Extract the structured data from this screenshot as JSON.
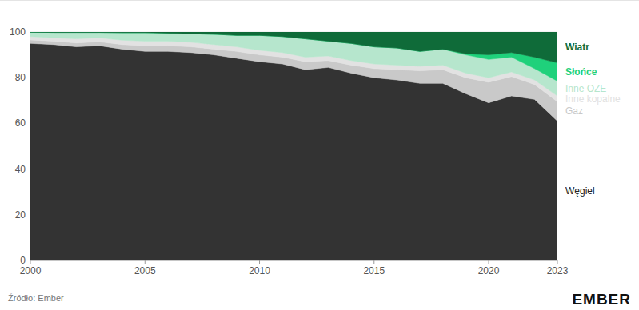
{
  "chart_data": {
    "type": "area",
    "stacked": true,
    "grid": true,
    "x": [
      2000,
      2001,
      2002,
      2003,
      2004,
      2005,
      2006,
      2007,
      2008,
      2009,
      2010,
      2011,
      2012,
      2013,
      2014,
      2015,
      2016,
      2017,
      2018,
      2019,
      2020,
      2021,
      2022,
      2023
    ],
    "xlim": [
      2000,
      2023
    ],
    "xticks": [
      2000,
      2005,
      2010,
      2015,
      2020,
      2023
    ],
    "ylim": [
      0,
      100
    ],
    "yticks": [
      0,
      20,
      40,
      60,
      80,
      100
    ],
    "series": [
      {
        "name": "Węgiel",
        "color": "#333333",
        "values": [
          95,
          94.5,
          93.5,
          94,
          92.5,
          91.5,
          91.5,
          91,
          90,
          88.5,
          87,
          86,
          83.5,
          84.5,
          82,
          80,
          79,
          77.5,
          77.5,
          73,
          69,
          72,
          70.5,
          61
        ]
      },
      {
        "name": "Gaz",
        "color": "#c9c9c9",
        "values": [
          1.5,
          1.5,
          1.7,
          1.7,
          2,
          2.5,
          2.5,
          2.5,
          2.5,
          3,
          3,
          3,
          3.5,
          3,
          3.5,
          4,
          4.5,
          5.5,
          6,
          7,
          9,
          8.5,
          6.5,
          8.5
        ]
      },
      {
        "name": "Inne kopalne",
        "color": "#e2e2e2",
        "values": [
          1.5,
          1.5,
          1.8,
          1.8,
          1.9,
          2,
          2,
          2,
          2,
          2,
          2,
          2,
          2,
          2,
          2,
          2,
          2,
          2,
          2,
          2,
          2,
          2,
          2,
          2.5
        ]
      },
      {
        "name": "Inne OZE",
        "color": "#b6e6cd",
        "values": [
          1.9,
          2.3,
          2.8,
          2.3,
          3.3,
          3.7,
          3.5,
          3.7,
          4.5,
          5,
          6.5,
          7,
          8,
          6.5,
          7.5,
          7.5,
          7.5,
          6.5,
          7,
          8,
          8,
          6.5,
          5,
          6.5
        ]
      },
      {
        "name": "Słońce",
        "color": "#1fd17b",
        "values": [
          0,
          0,
          0,
          0,
          0,
          0,
          0,
          0,
          0,
          0,
          0,
          0,
          0,
          0,
          0,
          0,
          0,
          0,
          0,
          0.5,
          2,
          2,
          5,
          8
        ]
      },
      {
        "name": "Wiatr",
        "color": "#0f6b39",
        "values": [
          0.1,
          0.2,
          0.2,
          0.2,
          0.3,
          0.3,
          0.5,
          0.8,
          1,
          1.5,
          1.5,
          2,
          3,
          4,
          5,
          6.5,
          7,
          8.5,
          7.5,
          9.5,
          10,
          9,
          11,
          13.5
        ]
      }
    ],
    "annotations": [
      "Źródło: Ember",
      "EMBER"
    ]
  }
}
